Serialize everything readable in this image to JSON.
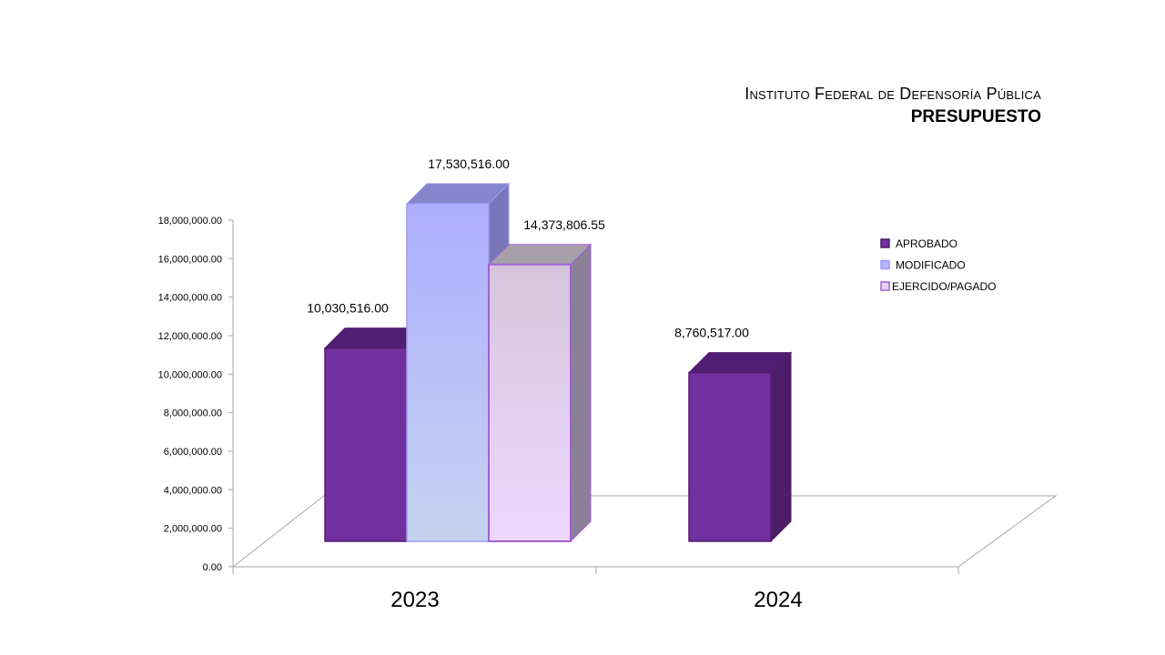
{
  "title": {
    "line1": "Instituto Federal de Defensoría Pública",
    "line2": "PRESUPUESTO"
  },
  "chart_data": {
    "type": "bar",
    "categories": [
      "2023",
      "2024"
    ],
    "series": [
      {
        "name": "APROBADO",
        "values": [
          10030516.0,
          8760517.0
        ],
        "labels": [
          "10,030,516.00",
          "8,760,517.00"
        ],
        "color": "#7030A0"
      },
      {
        "name": "MODIFICADO",
        "values": [
          17530516.0,
          null
        ],
        "labels": [
          "17,530,516.00",
          ""
        ],
        "color": "#B3B3FF"
      },
      {
        "name": "EJERCIDO/PAGADO",
        "values": [
          14373806.55,
          null
        ],
        "labels": [
          "14,373,806.55",
          ""
        ],
        "color": "#E8D4F8"
      }
    ],
    "y_ticks": [
      "0.00",
      "2,000,000.00",
      "4,000,000.00",
      "6,000,000.00",
      "8,000,000.00",
      "10,000,000.00",
      "12,000,000.00",
      "14,000,000.00",
      "16,000,000.00",
      "18,000,000.00"
    ],
    "ylim": [
      0,
      18000000
    ],
    "legend_position": "right",
    "style": "3d-column"
  }
}
